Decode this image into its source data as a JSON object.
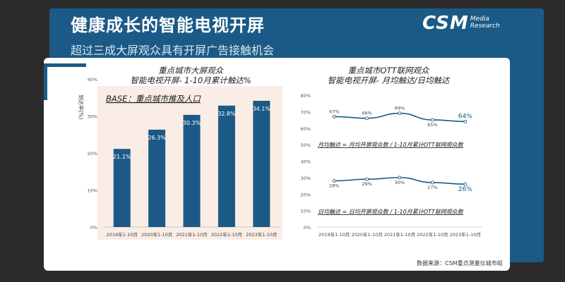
{
  "header": {
    "title": "健康成长的智能电视开屏",
    "subtitle": "超过三成大屏观众具有开屏广告接触机会",
    "logo_main": "CSM",
    "logo_sub_1": "Media",
    "logo_sub_2": "Research"
  },
  "colors": {
    "bar": "#1b5a86",
    "line": "#1b5a86",
    "plot_bg": "#f9ede6"
  },
  "left_chart": {
    "title_line1": "重点城市大屏观众",
    "title_line2": "智能电视开屏- 1-10月累计触达%",
    "base_label": "BASE：重点城市推及人口",
    "ylabel": "到达率(%)"
  },
  "right_chart": {
    "title_line1": "重点城市OTT联网观众",
    "title_line2": "智能电视开屏- 月均触达/日均触达",
    "monthly_label": "月均触达 = 月均开屏观众数 / 1-10月累计OTT联网观众数",
    "daily_label": "日均触达 = 日均开屏观众数 / 1-10月累计OTT联网观众数"
  },
  "source": "数据来源：CSM重点测量仪城市组",
  "chart_data": [
    {
      "type": "bar",
      "categories": [
        "2019年1-10月",
        "2020年1-10月",
        "2021年1-10月",
        "2022年1-10月",
        "2023年1-10月"
      ],
      "values": [
        21.1,
        26.3,
        30.3,
        32.8,
        34.1
      ],
      "value_labels": [
        "21.1%",
        "26.3%",
        "30.3%",
        "32.8%",
        "34.1%"
      ],
      "title": "重点城市大屏观众 智能电视开屏- 1-10月累计触达%",
      "ylabel": "到达率(%)",
      "ylim": [
        0,
        40
      ],
      "yticks": [
        "0%",
        "10%",
        "20%",
        "30%",
        "40%"
      ]
    },
    {
      "type": "line",
      "categories": [
        "2019年1-10月",
        "2020年1-10月",
        "2021年1-10月",
        "2022年1-10月",
        "2023年1-10月"
      ],
      "series": [
        {
          "name": "月均触达",
          "values": [
            67,
            66,
            69,
            65,
            64
          ],
          "labels": [
            "67%",
            "66%",
            "69%",
            "65%",
            "64%"
          ]
        },
        {
          "name": "日均触达",
          "values": [
            28,
            29,
            30,
            27,
            26
          ],
          "labels": [
            "28%",
            "29%",
            "30%",
            "27%",
            "26%"
          ]
        }
      ],
      "title": "重点城市OTT联网观众 智能电视开屏- 月均触达/日均触达",
      "ylim": [
        0,
        80
      ],
      "yticks": [
        "0%",
        "10%",
        "20%",
        "30%",
        "40%",
        "50%",
        "60%",
        "70%",
        "80%"
      ]
    }
  ]
}
